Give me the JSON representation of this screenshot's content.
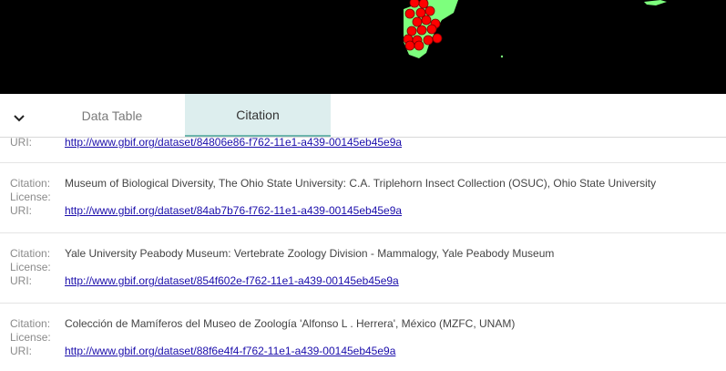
{
  "tabs": {
    "data_table": "Data Table",
    "citation": "Citation"
  },
  "colors": {
    "map_bg": "#000000",
    "occurrence": "#ff0000",
    "land": "#7dff7d",
    "tab_active_bg": "#ddeeee",
    "tab_active_border": "#6db5ad",
    "link": "#1a0dab"
  },
  "icons": {
    "collapse": "chevron-down-icon"
  },
  "labels": {
    "citation": "Citation:",
    "license": "License:",
    "uri": "URI:"
  },
  "citations": [
    {
      "citation": "",
      "license": "",
      "uri": "http://www.gbif.org/dataset/84806e86-f762-11e1-a439-00145eb45e9a"
    },
    {
      "citation": "Museum of Biological Diversity, The Ohio State University: C.A. Triplehorn Insect Collection (OSUC), Ohio State University",
      "license": "",
      "uri": "http://www.gbif.org/dataset/84ab7b76-f762-11e1-a439-00145eb45e9a"
    },
    {
      "citation": "Yale University Peabody Museum: Vertebrate Zoology Division - Mammalogy, Yale Peabody Museum",
      "license": "",
      "uri": "http://www.gbif.org/dataset/854f602e-f762-11e1-a439-00145eb45e9a"
    },
    {
      "citation": "Colección de Mamíferos del Museo de Zoología 'Alfonso L . Herrera', México (MZFC, UNAM)",
      "license": "",
      "uri": "http://www.gbif.org/dataset/88f6e4f4-f762-11e1-a439-00145eb45e9a"
    }
  ]
}
